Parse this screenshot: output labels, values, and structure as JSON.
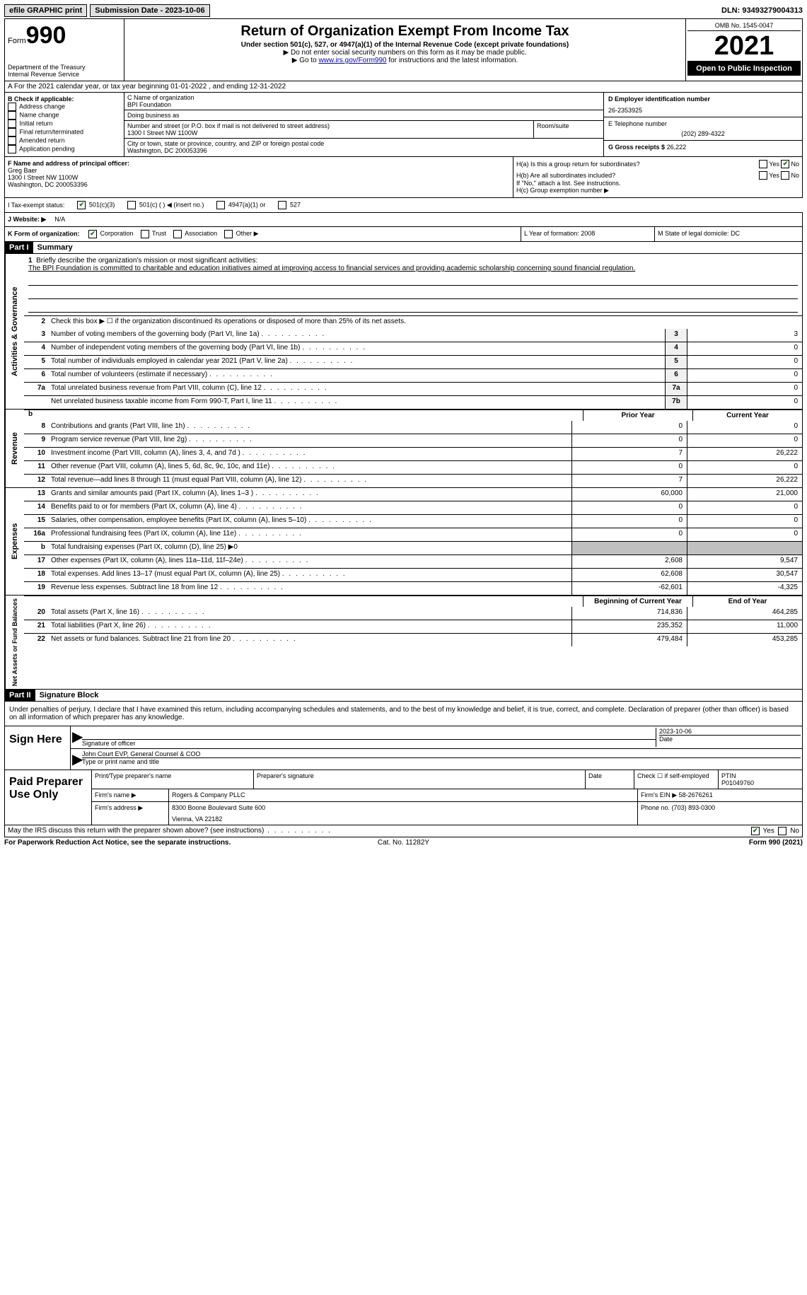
{
  "topbar": {
    "efile": "efile GRAPHIC print",
    "submission": "Submission Date - 2023-10-06",
    "dln": "DLN: 93493279004313"
  },
  "header": {
    "form_label": "Form",
    "form_num": "990",
    "dept": "Department of the Treasury",
    "irs": "Internal Revenue Service",
    "title": "Return of Organization Exempt From Income Tax",
    "subtitle": "Under section 501(c), 527, or 4947(a)(1) of the Internal Revenue Code (except private foundations)",
    "note1": "▶ Do not enter social security numbers on this form as it may be made public.",
    "note2_pre": "▶ Go to ",
    "note2_link": "www.irs.gov/Form990",
    "note2_post": " for instructions and the latest information.",
    "omb": "OMB No. 1545-0047",
    "year": "2021",
    "inspect": "Open to Public Inspection"
  },
  "lineA": "A For the 2021 calendar year, or tax year beginning 01-01-2022   , and ending 12-31-2022",
  "boxB": {
    "label": "B Check if applicable:",
    "opts": [
      "Address change",
      "Name change",
      "Initial return",
      "Final return/terminated",
      "Amended return",
      "Application pending"
    ]
  },
  "boxC": {
    "name_label": "C Name of organization",
    "name": "BPI Foundation",
    "dba_label": "Doing business as",
    "dba": "",
    "street_label": "Number and street (or P.O. box if mail is not delivered to street address)",
    "room_label": "Room/suite",
    "street": "1300 I Street NW 1100W",
    "city_label": "City or town, state or province, country, and ZIP or foreign postal code",
    "city": "Washington, DC  200053396"
  },
  "boxD": {
    "label": "D Employer identification number",
    "val": "26-2353925"
  },
  "boxE": {
    "label": "E Telephone number",
    "val": "(202) 289-4322"
  },
  "boxG": {
    "label": "G Gross receipts $",
    "val": "26,222"
  },
  "boxF": {
    "label": "F Name and address of principal officer:",
    "name": "Greg Baer",
    "addr1": "1300 I Street NW 1100W",
    "addr2": "Washington, DC  200053396"
  },
  "boxH": {
    "a": "H(a)  Is this a group return for subordinates?",
    "b": "H(b)  Are all subordinates included?",
    "b_note": "If \"No,\" attach a list. See instructions.",
    "c": "H(c)  Group exemption number ▶",
    "yes": "Yes",
    "no": "No"
  },
  "boxI": {
    "label": "I   Tax-exempt status:",
    "opt1": "501(c)(3)",
    "opt2": "501(c) (   ) ◀ (insert no.)",
    "opt3": "4947(a)(1) or",
    "opt4": "527"
  },
  "boxJ": {
    "label": "J   Website: ▶",
    "val": "N/A"
  },
  "boxK": {
    "label": "K Form of organization:",
    "opts": [
      "Corporation",
      "Trust",
      "Association",
      "Other ▶"
    ]
  },
  "boxL": {
    "label": "L Year of formation:",
    "val": "2008"
  },
  "boxM": {
    "label": "M State of legal domicile:",
    "val": "DC"
  },
  "part1": {
    "hdr": "Part I",
    "title": "Summary",
    "q1_label": "1",
    "q1": "Briefly describe the organization's mission or most significant activities:",
    "q1_text": "The BPI Foundation is committed to charitable and education initiatives aimed at improving access to financial services and providing academic scholarship concerning sound financial regulation.",
    "q2": "Check this box ▶ ☐  if the organization discontinued its operations or disposed of more than 25% of its net assets.",
    "rows_ag": [
      {
        "n": "3",
        "d": "Number of voting members of the governing body (Part VI, line 1a)",
        "box": "3",
        "v": "3"
      },
      {
        "n": "4",
        "d": "Number of independent voting members of the governing body (Part VI, line 1b)",
        "box": "4",
        "v": "0"
      },
      {
        "n": "5",
        "d": "Total number of individuals employed in calendar year 2021 (Part V, line 2a)",
        "box": "5",
        "v": "0"
      },
      {
        "n": "6",
        "d": "Total number of volunteers (estimate if necessary)",
        "box": "6",
        "v": "0"
      },
      {
        "n": "7a",
        "d": "Total unrelated business revenue from Part VIII, column (C), line 12",
        "box": "7a",
        "v": "0"
      },
      {
        "n": "",
        "d": "Net unrelated business taxable income from Form 990-T, Part I, line 11",
        "box": "7b",
        "v": "0"
      }
    ],
    "col_prior": "Prior Year",
    "col_current": "Current Year",
    "rows_rev": [
      {
        "n": "8",
        "d": "Contributions and grants (Part VIII, line 1h)",
        "p": "0",
        "c": "0"
      },
      {
        "n": "9",
        "d": "Program service revenue (Part VIII, line 2g)",
        "p": "0",
        "c": "0"
      },
      {
        "n": "10",
        "d": "Investment income (Part VIII, column (A), lines 3, 4, and 7d )",
        "p": "7",
        "c": "26,222"
      },
      {
        "n": "11",
        "d": "Other revenue (Part VIII, column (A), lines 5, 6d, 8c, 9c, 10c, and 11e)",
        "p": "0",
        "c": "0"
      },
      {
        "n": "12",
        "d": "Total revenue—add lines 8 through 11 (must equal Part VIII, column (A), line 12)",
        "p": "7",
        "c": "26,222"
      }
    ],
    "rows_exp": [
      {
        "n": "13",
        "d": "Grants and similar amounts paid (Part IX, column (A), lines 1–3 )",
        "p": "60,000",
        "c": "21,000"
      },
      {
        "n": "14",
        "d": "Benefits paid to or for members (Part IX, column (A), line 4)",
        "p": "0",
        "c": "0"
      },
      {
        "n": "15",
        "d": "Salaries, other compensation, employee benefits (Part IX, column (A), lines 5–10)",
        "p": "0",
        "c": "0"
      },
      {
        "n": "16a",
        "d": "Professional fundraising fees (Part IX, column (A), line 11e)",
        "p": "0",
        "c": "0"
      },
      {
        "n": "b",
        "d": "Total fundraising expenses (Part IX, column (D), line 25) ▶0",
        "p": "",
        "c": "",
        "shade": true
      },
      {
        "n": "17",
        "d": "Other expenses (Part IX, column (A), lines 11a–11d, 11f–24e)",
        "p": "2,608",
        "c": "9,547"
      },
      {
        "n": "18",
        "d": "Total expenses. Add lines 13–17 (must equal Part IX, column (A), line 25)",
        "p": "62,608",
        "c": "30,547"
      },
      {
        "n": "19",
        "d": "Revenue less expenses. Subtract line 18 from line 12",
        "p": "-62,601",
        "c": "-4,325"
      }
    ],
    "col_begin": "Beginning of Current Year",
    "col_end": "End of Year",
    "rows_net": [
      {
        "n": "20",
        "d": "Total assets (Part X, line 16)",
        "p": "714,836",
        "c": "464,285"
      },
      {
        "n": "21",
        "d": "Total liabilities (Part X, line 26)",
        "p": "235,352",
        "c": "11,000"
      },
      {
        "n": "22",
        "d": "Net assets or fund balances. Subtract line 21 from line 20",
        "p": "479,484",
        "c": "453,285"
      }
    ],
    "vlabel_ag": "Activities & Governance",
    "vlabel_rev": "Revenue",
    "vlabel_exp": "Expenses",
    "vlabel_net": "Net Assets or Fund Balances"
  },
  "part2": {
    "hdr": "Part II",
    "title": "Signature Block",
    "decl": "Under penalties of perjury, I declare that I have examined this return, including accompanying schedules and statements, and to the best of my knowledge and belief, it is true, correct, and complete. Declaration of preparer (other than officer) is based on all information of which preparer has any knowledge."
  },
  "sign": {
    "label": "Sign Here",
    "sig_label": "Signature of officer",
    "date": "2023-10-06",
    "date_label": "Date",
    "name": "John Court EVP, General Counsel & COO",
    "name_label": "Type or print name and title"
  },
  "prep": {
    "label": "Paid Preparer Use Only",
    "r1": {
      "c1": "Print/Type preparer's name",
      "c2": "Preparer's signature",
      "c3": "Date",
      "c4": "Check ☐ if self-employed",
      "c5_label": "PTIN",
      "c5": "P01049760"
    },
    "r2": {
      "c1": "Firm's name    ▶",
      "v1": "Rogers & Company PLLC",
      "c2": "Firm's EIN ▶",
      "v2": "58-2676261"
    },
    "r3": {
      "c1": "Firm's address ▶",
      "v1": "8300 Boone Boulevard Suite 600",
      "c2": "Phone no.",
      "v2": "(703) 893-0300"
    },
    "r3b": "Vienna, VA  22182"
  },
  "footer": {
    "q": "May the IRS discuss this return with the preparer shown above? (see instructions)",
    "yes": "Yes",
    "no": "No"
  },
  "bottom": {
    "l": "For Paperwork Reduction Act Notice, see the separate instructions.",
    "m": "Cat. No. 11282Y",
    "r": "Form 990 (2021)"
  }
}
